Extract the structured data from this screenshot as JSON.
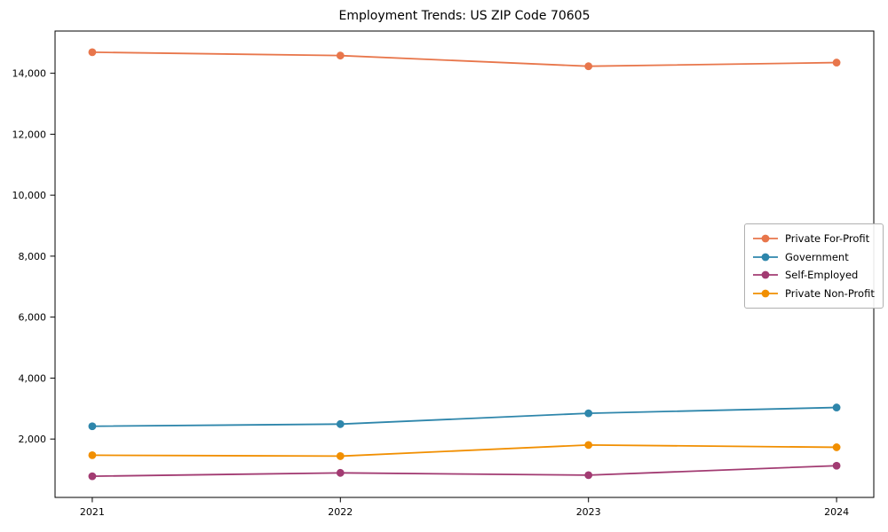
{
  "chart_data": {
    "type": "line",
    "title": "Employment Trends: US ZIP Code 70605",
    "xlabel": "",
    "ylabel": "",
    "x": [
      2021,
      2022,
      2023,
      2024
    ],
    "x_tick_labels": [
      "2021",
      "2022",
      "2023",
      "2024"
    ],
    "y_tick_values": [
      2000,
      4000,
      6000,
      8000,
      10000,
      12000,
      14000
    ],
    "y_tick_labels": [
      "2,000",
      "4,000",
      "6,000",
      "8,000",
      "10,000",
      "12,000",
      "14,000"
    ],
    "xlim": [
      2020.85,
      2024.15
    ],
    "ylim": [
      85,
      15385
    ],
    "grid": false,
    "legend_position": "center-right",
    "axes_color": "#000000",
    "background_color": "#ffffff",
    "series": [
      {
        "name": "Private For-Profit",
        "color": "#e8764b",
        "values": [
          14690,
          14580,
          14230,
          14350
        ]
      },
      {
        "name": "Government",
        "color": "#2e86ab",
        "values": [
          2420,
          2490,
          2845,
          3035
        ]
      },
      {
        "name": "Self-Employed",
        "color": "#a23b72",
        "values": [
          780,
          890,
          815,
          1125
        ]
      },
      {
        "name": "Private Non-Profit",
        "color": "#f18f01",
        "values": [
          1470,
          1440,
          1805,
          1730
        ]
      }
    ]
  }
}
